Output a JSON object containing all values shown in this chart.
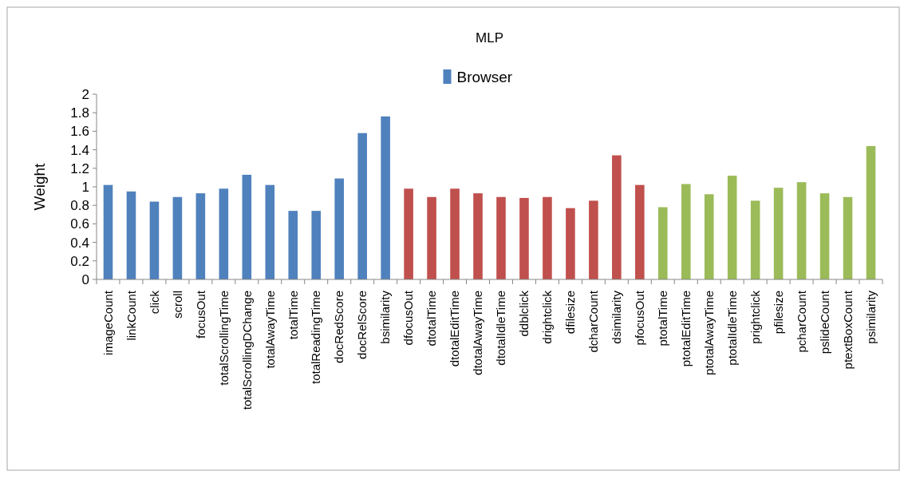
{
  "chart_data": {
    "type": "bar",
    "title": "MLP",
    "ylabel": "Weight",
    "categories": [
      "imageCount",
      "linkCount",
      "click",
      "scroll",
      "focusOut",
      "totalScrollingTime",
      "totalScrollingDChange",
      "totalAwayTime",
      "totalTime",
      "totalReadingTime",
      "docRedScore",
      "docRelScore",
      "bsimilarity",
      "dfocusOut",
      "dtotalTime",
      "dtotalEditTime",
      "dtotalAwayTime",
      "dtotalIdleTime",
      "ddblclick",
      "drightclick",
      "dfilesize",
      "dcharCount",
      "dsimilarity",
      "pfocusOut",
      "ptotalTime",
      "ptotalEditTime",
      "ptotalAwayTime",
      "ptotalIdleTime",
      "prightclick",
      "pfilesize",
      "pcharCount",
      "pslideCount",
      "ptextBoxCount",
      "psimilarity"
    ],
    "series": [
      {
        "name": "Browser",
        "color": "#4f81bd",
        "values": [
          1.02,
          0.95,
          0.84,
          0.89,
          0.93,
          0.98,
          1.13,
          1.02,
          0.74,
          0.74,
          1.09,
          1.58,
          1.76,
          null,
          null,
          null,
          null,
          null,
          null,
          null,
          null,
          null,
          null,
          null,
          null,
          null,
          null,
          null,
          null,
          null,
          null,
          null,
          null,
          null
        ]
      },
      {
        "color": "#c0504d",
        "values": [
          null,
          null,
          null,
          null,
          null,
          null,
          null,
          null,
          null,
          null,
          null,
          null,
          null,
          0.98,
          0.89,
          0.98,
          0.93,
          0.89,
          0.88,
          0.89,
          0.77,
          0.85,
          1.34,
          1.02,
          null,
          null,
          null,
          null,
          null,
          null,
          null,
          null,
          null,
          null
        ]
      },
      {
        "color": "#9bbb59",
        "values": [
          null,
          null,
          null,
          null,
          null,
          null,
          null,
          null,
          null,
          null,
          null,
          null,
          null,
          null,
          null,
          null,
          null,
          null,
          null,
          null,
          null,
          null,
          null,
          null,
          0.78,
          1.03,
          0.92,
          1.12,
          0.85,
          0.99,
          1.05,
          0.93,
          0.89,
          1.44
        ]
      }
    ],
    "ylim": [
      0,
      2
    ],
    "yticks": [
      0,
      0.2,
      0.4,
      0.6,
      0.8,
      1,
      1.2,
      1.4,
      1.6,
      1.8,
      2
    ],
    "grid": false,
    "legend": "top"
  }
}
